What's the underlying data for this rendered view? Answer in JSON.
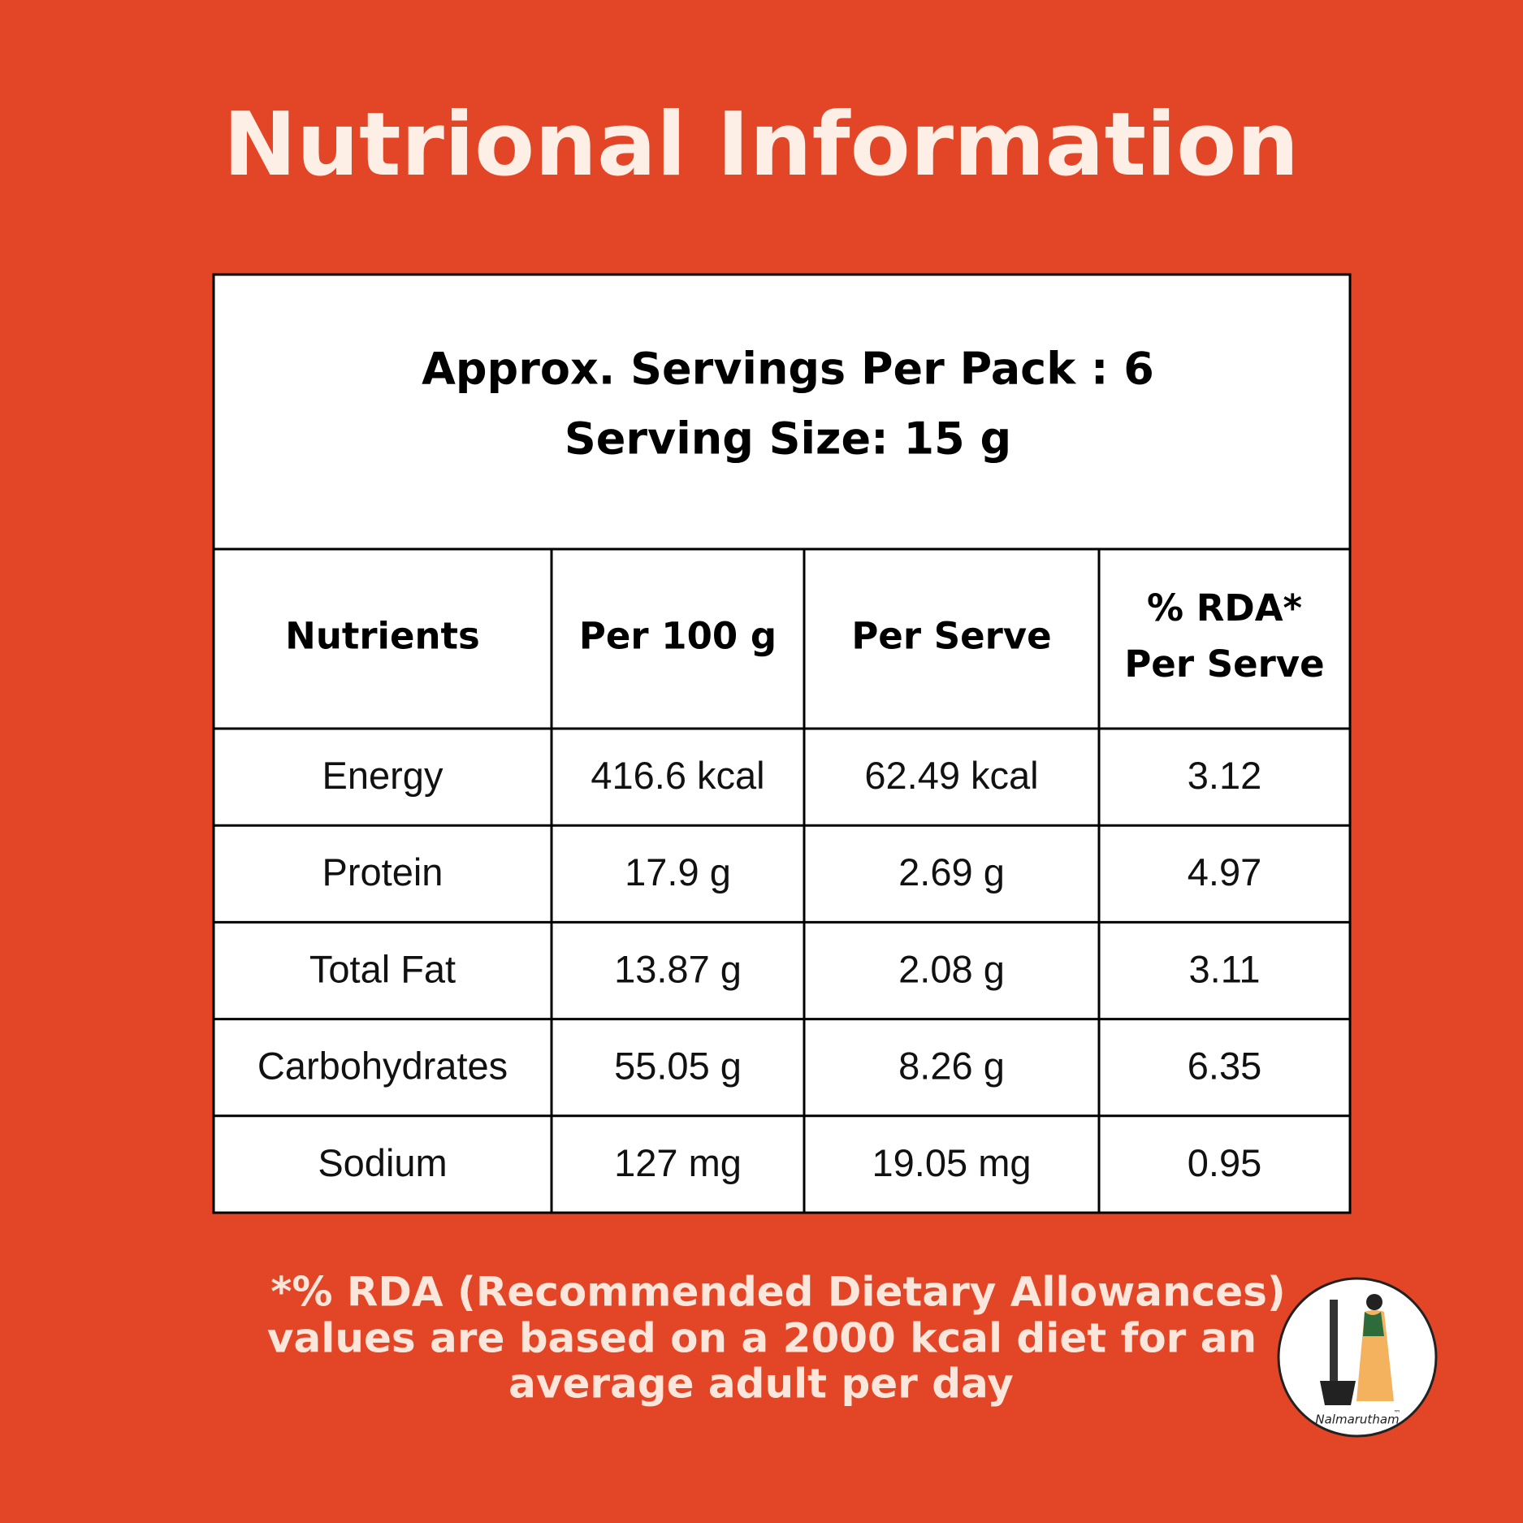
{
  "header": {
    "title": "Nutrional Information"
  },
  "table": {
    "caption": [
      "Approx. Servings Per Pack : 6",
      "Serving Size: 15 g"
    ],
    "columns": [
      [
        "Nutrients"
      ],
      [
        "Per 100 g"
      ],
      [
        "Per Serve"
      ],
      [
        "% RDA*",
        "Per Serve"
      ]
    ],
    "rows": [
      [
        "Energy",
        "416.6 kcal",
        "62.49 kcal",
        "3.12"
      ],
      [
        "Protein",
        "17.9 g",
        "2.69 g",
        "4.97"
      ],
      [
        "Total Fat",
        "13.87 g",
        "2.08 g",
        "3.11"
      ],
      [
        "Carbohydrates",
        "55.05 g",
        "8.26 g",
        "6.35"
      ],
      [
        "Sodium",
        "127 mg",
        "19.05 mg",
        "0.95"
      ]
    ]
  },
  "footnote": [
    "*% RDA (Recommended Dietary Allowances)",
    "values are based on a 2000 kcal diet for an",
    "average adult per day"
  ],
  "logo": {
    "text": "Nalmarutham",
    "mark": "™"
  }
}
